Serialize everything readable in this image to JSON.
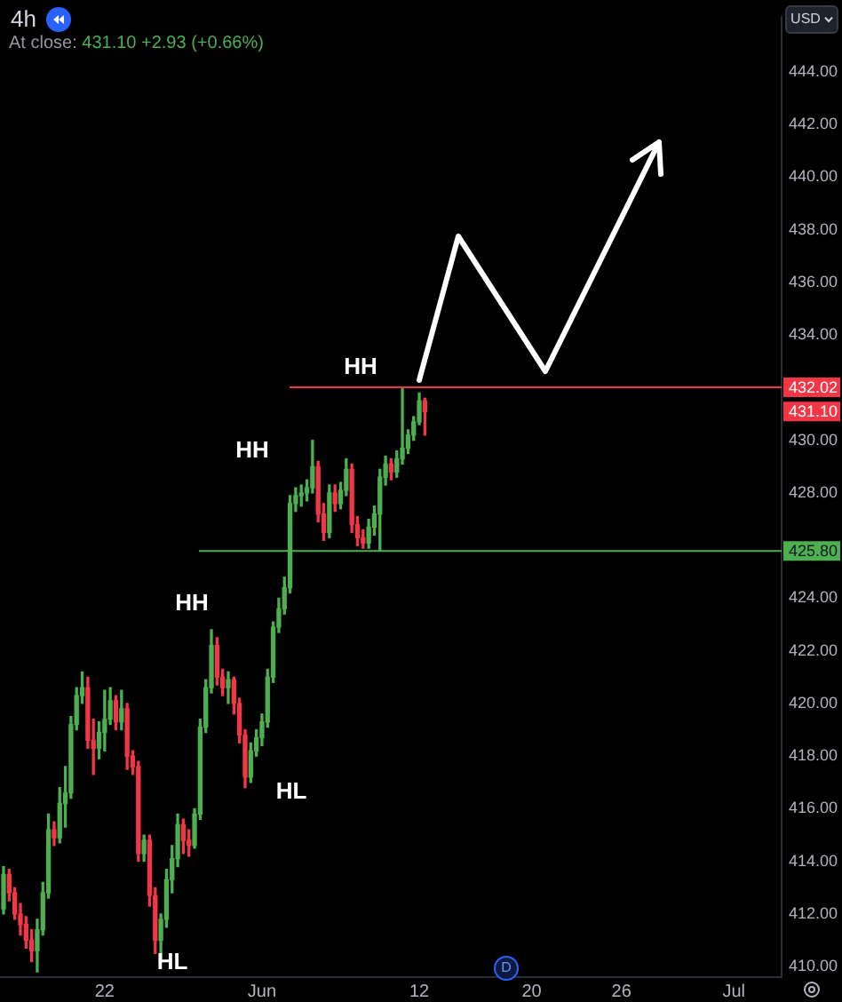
{
  "chart_data": {
    "type": "candlestick",
    "title": "4h",
    "subtitle": "At close: 431.10 +2.93 (+0.66%)",
    "ylabel": "USD",
    "categories": [
      null,
      null,
      null,
      null,
      null,
      null,
      null,
      null,
      null,
      null,
      null,
      null,
      null,
      null,
      null,
      null,
      null,
      null,
      "22",
      null,
      null,
      null,
      null,
      null,
      null,
      null,
      null,
      null,
      null,
      null,
      null,
      null,
      null,
      null,
      null,
      null,
      null,
      null,
      null,
      null,
      null,
      null,
      null,
      null,
      null,
      null,
      "Jun",
      null,
      null,
      null,
      null,
      null,
      null,
      null,
      null,
      null,
      null,
      null,
      null,
      null,
      null,
      null,
      null,
      null,
      null,
      null,
      null,
      null,
      null,
      null,
      null,
      null,
      null,
      null,
      "12",
      null,
      null,
      null,
      null,
      null,
      null,
      null,
      null,
      null,
      null,
      null,
      null,
      null,
      null,
      null,
      null,
      null,
      null,
      null,
      "20",
      null,
      null,
      null,
      null,
      null,
      null,
      null,
      null,
      null,
      null,
      null,
      null,
      null,
      null,
      null,
      "26",
      null,
      null,
      null,
      null,
      null,
      null,
      null,
      null,
      null,
      null,
      null,
      null,
      null,
      null,
      null,
      null,
      null,
      null,
      null,
      "Jul",
      null,
      null,
      null,
      null,
      null,
      null,
      null,
      null
    ],
    "ohlc": [
      [
        412.2,
        413.8,
        412.0,
        413.5
      ],
      [
        413.5,
        413.7,
        412.5,
        412.8
      ],
      [
        412.8,
        413.0,
        411.8,
        412.0
      ],
      [
        412.0,
        412.4,
        411.2,
        411.6
      ],
      [
        411.6,
        411.9,
        410.7,
        411.0
      ],
      [
        411.0,
        411.4,
        410.2,
        410.6
      ],
      [
        410.6,
        411.8,
        409.8,
        411.4
      ],
      [
        411.4,
        413.2,
        411.2,
        412.8
      ],
      [
        412.8,
        415.8,
        412.6,
        415.2
      ],
      [
        415.2,
        415.5,
        414.6,
        414.9
      ],
      [
        414.9,
        416.8,
        414.7,
        416.2
      ],
      [
        416.2,
        417.6,
        415.3,
        416.6
      ],
      [
        416.6,
        419.5,
        416.4,
        419.2
      ],
      [
        419.2,
        420.6,
        419.0,
        420.3
      ],
      [
        420.3,
        421.2,
        420.0,
        420.6
      ],
      [
        420.6,
        421.0,
        418.3,
        418.6
      ],
      [
        418.6,
        419.4,
        417.3,
        418.3
      ],
      [
        418.3,
        419.3,
        417.9,
        418.9
      ],
      [
        418.9,
        420.5,
        418.2,
        419.4
      ],
      [
        419.4,
        420.6,
        419.2,
        420.1
      ],
      [
        420.1,
        420.3,
        419.0,
        419.3
      ],
      [
        419.3,
        420.5,
        419.0,
        419.8
      ],
      [
        419.8,
        420.0,
        417.5,
        418.0
      ],
      [
        418.0,
        418.2,
        417.3,
        417.6
      ],
      [
        417.6,
        417.8,
        414.0,
        414.3
      ],
      [
        414.3,
        415.0,
        414.0,
        414.8
      ],
      [
        414.8,
        415.0,
        412.3,
        412.7
      ],
      [
        412.7,
        413.0,
        410.5,
        411.0
      ],
      [
        411.0,
        412.0,
        410.3,
        411.8
      ],
      [
        411.8,
        413.7,
        411.5,
        413.3
      ],
      [
        413.3,
        414.6,
        412.8,
        414.1
      ],
      [
        414.1,
        415.8,
        413.8,
        415.4
      ],
      [
        415.4,
        415.6,
        414.3,
        414.8
      ],
      [
        414.8,
        415.2,
        414.2,
        414.6
      ],
      [
        414.6,
        416.0,
        414.5,
        415.8
      ],
      [
        415.8,
        419.4,
        415.6,
        419.1
      ],
      [
        419.1,
        420.9,
        418.9,
        420.6
      ],
      [
        420.6,
        422.8,
        420.4,
        422.2
      ],
      [
        422.2,
        422.5,
        420.7,
        421.0
      ],
      [
        421.0,
        421.3,
        420.3,
        420.6
      ],
      [
        420.6,
        421.2,
        420.0,
        420.9
      ],
      [
        420.9,
        421.0,
        419.6,
        420.0
      ],
      [
        420.0,
        420.2,
        418.5,
        418.8
      ],
      [
        418.8,
        419.0,
        416.8,
        417.2
      ],
      [
        417.2,
        418.5,
        417.0,
        418.2
      ],
      [
        418.2,
        419.0,
        418.0,
        418.7
      ],
      [
        418.7,
        419.6,
        418.4,
        419.3
      ],
      [
        419.3,
        421.3,
        419.1,
        421.0
      ],
      [
        421.0,
        423.1,
        420.8,
        422.9
      ],
      [
        422.9,
        424.0,
        422.7,
        423.6
      ],
      [
        423.6,
        424.8,
        423.4,
        424.4
      ],
      [
        424.4,
        427.9,
        424.2,
        427.6
      ],
      [
        427.6,
        428.2,
        427.3,
        427.9
      ],
      [
        427.9,
        428.3,
        427.5,
        428.0
      ],
      [
        428.0,
        428.5,
        427.7,
        428.2
      ],
      [
        428.2,
        430.0,
        428.0,
        429.0
      ],
      [
        429.0,
        429.2,
        426.9,
        427.2
      ],
      [
        427.2,
        427.6,
        426.2,
        426.5
      ],
      [
        426.5,
        428.3,
        426.3,
        428.0
      ],
      [
        428.0,
        428.3,
        427.3,
        427.6
      ],
      [
        427.6,
        428.4,
        427.4,
        428.1
      ],
      [
        428.1,
        429.3,
        427.9,
        428.9
      ],
      [
        428.9,
        429.1,
        426.5,
        426.8
      ],
      [
        426.8,
        427.1,
        426.0,
        426.3
      ],
      [
        426.3,
        426.6,
        425.9,
        426.1
      ],
      [
        426.1,
        427.0,
        425.9,
        426.7
      ],
      [
        426.7,
        427.5,
        426.4,
        427.2
      ],
      [
        427.2,
        428.9,
        425.8,
        428.6
      ],
      [
        428.6,
        429.4,
        428.3,
        429.1
      ],
      [
        429.1,
        429.3,
        428.5,
        428.8
      ],
      [
        428.8,
        429.6,
        428.6,
        429.3
      ],
      [
        429.3,
        432.0,
        429.1,
        429.7
      ],
      [
        429.7,
        430.4,
        429.5,
        430.2
      ],
      [
        430.2,
        430.9,
        430.0,
        430.7
      ],
      [
        430.7,
        431.8,
        430.6,
        431.5
      ],
      [
        431.5,
        431.6,
        430.2,
        431.1
      ],
      null,
      null,
      null,
      null,
      null,
      null,
      null,
      null,
      null,
      null,
      null,
      null,
      null,
      null,
      null,
      null,
      null,
      null,
      null,
      null,
      null,
      null,
      null,
      null,
      null,
      null,
      null,
      null,
      null,
      null,
      null,
      null,
      null,
      null,
      null,
      null,
      null,
      null,
      null,
      null,
      null,
      null,
      null,
      null,
      null,
      null,
      null,
      null,
      null,
      null,
      null,
      null,
      null,
      null,
      null,
      null,
      null,
      null,
      null,
      null,
      null,
      null,
      null
    ],
    "colors": [
      "#4caf50",
      "#f23645",
      "#f23645",
      "#f23645",
      "#f23645",
      "#f23645",
      "#4caf50",
      "#4caf50",
      "#4caf50",
      "#f23645",
      "#4caf50",
      "#4caf50",
      "#4caf50",
      "#4caf50",
      "#4caf50",
      "#f23645",
      "#f23645",
      "#4caf50",
      "#4caf50",
      "#4caf50",
      "#f23645",
      "#4caf50",
      "#f23645",
      "#f23645",
      "#f23645",
      "#4caf50",
      "#f23645",
      "#f23645",
      "#4caf50",
      "#4caf50",
      "#4caf50",
      "#4caf50",
      "#f23645",
      "#f23645",
      "#4caf50",
      "#4caf50",
      "#4caf50",
      "#4caf50",
      "#f23645",
      "#f23645",
      "#4caf50",
      "#f23645",
      "#f23645",
      "#f23645",
      "#4caf50",
      "#4caf50",
      "#4caf50",
      "#4caf50",
      "#4caf50",
      "#4caf50",
      "#4caf50",
      "#4caf50",
      "#4caf50",
      "#4caf50",
      "#4caf50",
      "#4caf50",
      "#f23645",
      "#f23645",
      "#4caf50",
      "#f23645",
      "#4caf50",
      "#4caf50",
      "#f23645",
      "#f23645",
      "#f23645",
      "#4caf50",
      "#4caf50",
      "#4caf50",
      "#4caf50",
      "#f23645",
      "#4caf50",
      "#4caf50",
      "#4caf50",
      "#4caf50",
      "#4caf50",
      "#f23645",
      null,
      null,
      null,
      null,
      null,
      null,
      null,
      null,
      null,
      null,
      null,
      null,
      null,
      null,
      null,
      null,
      null,
      null,
      null,
      null,
      null,
      null,
      null,
      null,
      null,
      null,
      null,
      null,
      null,
      null,
      null,
      null,
      null,
      null,
      null,
      null,
      null,
      null,
      null,
      null,
      null,
      null,
      null,
      null,
      null,
      null,
      null,
      null,
      null,
      null,
      null,
      null,
      null,
      null,
      null,
      null,
      null,
      null,
      null,
      null,
      null,
      null,
      null
    ],
    "ylim": [
      409.6,
      446.1
    ],
    "yticks": [
      {
        "value": 410,
        "label": "410.00"
      },
      {
        "value": 412,
        "label": "412.00"
      },
      {
        "value": 414,
        "label": "414.00"
      },
      {
        "value": 416,
        "label": "416.00"
      },
      {
        "value": 418,
        "label": "418.00"
      },
      {
        "value": 420,
        "label": "420.00"
      },
      {
        "value": 422,
        "label": "422.00"
      },
      {
        "value": 424,
        "label": "424.00"
      },
      {
        "value": 428,
        "label": "428.00"
      },
      {
        "value": 430,
        "label": "430.00"
      },
      {
        "value": 434,
        "label": "434.00"
      },
      {
        "value": 436,
        "label": "436.00"
      },
      {
        "value": 438,
        "label": "438.00"
      },
      {
        "value": 440,
        "label": "440.00"
      },
      {
        "value": 442,
        "label": "442.00"
      },
      {
        "value": 444,
        "label": "444.00"
      }
    ],
    "ref_lines": [
      {
        "axis": "y",
        "value": 432.02,
        "label": "432.02",
        "color": "#f23645"
      },
      {
        "axis": "y",
        "value": 425.8,
        "label": "425.80",
        "color": "#4caf50"
      }
    ],
    "annotations": [
      "HH",
      "HH",
      "HH",
      "HL",
      "HL",
      "D",
      "431.10"
    ]
  }
}
